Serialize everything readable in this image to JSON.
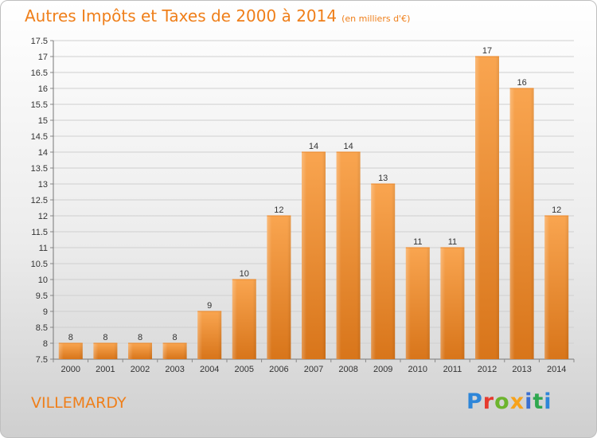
{
  "header": {
    "title": "Autres Impôts et Taxes de 2000 à 2014",
    "subtitle": "(en milliers d'€)"
  },
  "footer": {
    "town": "VILLEMARDY",
    "logo": "Proxiti"
  },
  "colors": {
    "accent": "#ef7f1a",
    "bar_light": "#f7a14d",
    "bar_dark": "#d9781c"
  },
  "chart_data": {
    "type": "bar",
    "title": "Autres Impôts et Taxes de 2000 à 2014",
    "subtitle": "(en milliers d'€)",
    "categories": [
      "2000",
      "2001",
      "2002",
      "2003",
      "2004",
      "2005",
      "2006",
      "2007",
      "2008",
      "2009",
      "2010",
      "2011",
      "2012",
      "2013",
      "2014"
    ],
    "values": [
      8,
      8,
      8,
      8,
      9,
      10,
      12,
      14,
      14,
      13,
      11,
      11,
      17,
      16,
      12
    ],
    "ylim": [
      7.5,
      17.5
    ],
    "yticks": [
      7.5,
      8,
      8.5,
      9,
      9.5,
      10,
      10.5,
      11,
      11.5,
      12,
      12.5,
      13,
      13.5,
      14,
      14.5,
      15,
      15.5,
      16,
      16.5,
      17,
      17.5
    ],
    "ytick_labels": [
      "7.5",
      "8",
      "8.5",
      "9",
      "9.5",
      "10",
      "10.5",
      "11",
      "11.5",
      "12",
      "12.5",
      "13",
      "13.5",
      "14",
      "14.5",
      "15",
      "15.5",
      "16",
      "16.5",
      "17",
      "17.5"
    ],
    "grid": "horizontal",
    "legend": "none"
  }
}
